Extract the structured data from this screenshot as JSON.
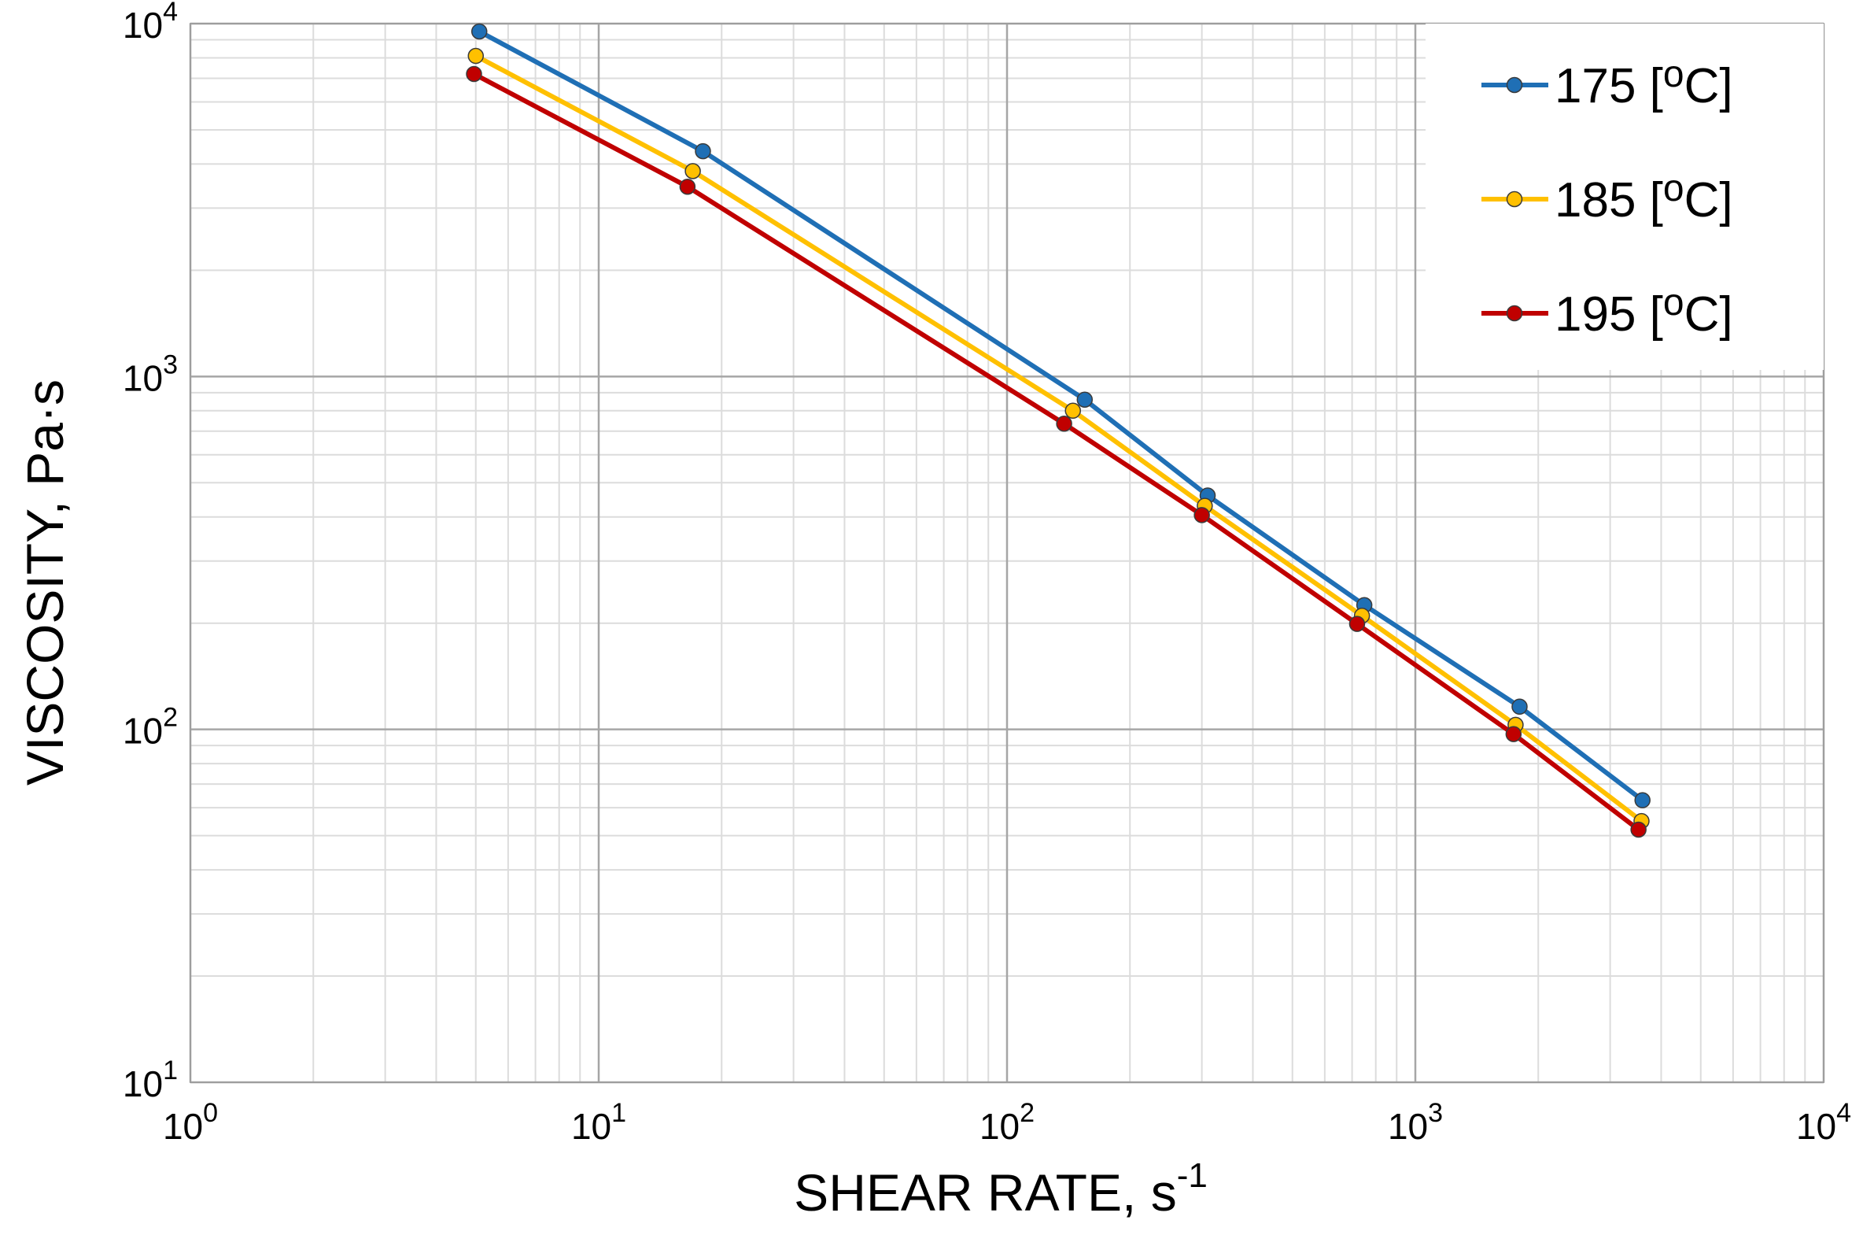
{
  "chart_data": {
    "type": "line",
    "x_scale": "log",
    "y_scale": "log",
    "xlim": [
      1,
      10000
    ],
    "ylim": [
      10,
      10000
    ],
    "xlabel": "SHEAR RATE, s",
    "xlabel_sup": "-1",
    "ylabel": "VISCOSITY, Pa·s",
    "grid": true,
    "legend_position": "top-right",
    "x_ticks": [
      {
        "value": 1,
        "base": "10",
        "exp": "0"
      },
      {
        "value": 10,
        "base": "10",
        "exp": "1"
      },
      {
        "value": 100,
        "base": "10",
        "exp": "2"
      },
      {
        "value": 1000,
        "base": "10",
        "exp": "3"
      },
      {
        "value": 10000,
        "base": "10",
        "exp": "4"
      }
    ],
    "y_ticks": [
      {
        "value": 10,
        "base": "10",
        "exp": "1"
      },
      {
        "value": 100,
        "base": "10",
        "exp": "2"
      },
      {
        "value": 1000,
        "base": "10",
        "exp": "3"
      },
      {
        "value": 10000,
        "base": "10",
        "exp": "4"
      }
    ],
    "series": [
      {
        "name": "175",
        "label_unit_open": "[",
        "label_unit_sup": "o",
        "label_unit_close": "C]",
        "color": "#1f6fb5",
        "x": [
          5.1,
          18,
          155,
          310,
          750,
          1800,
          3600
        ],
        "y": [
          9500,
          4350,
          860,
          460,
          225,
          116,
          63
        ]
      },
      {
        "name": "185",
        "label_unit_open": "[",
        "label_unit_sup": "o",
        "label_unit_close": "C]",
        "color": "#ffc000",
        "x": [
          5.0,
          17,
          145,
          305,
          740,
          1760,
          3580
        ],
        "y": [
          8100,
          3820,
          800,
          430,
          210,
          103,
          55
        ]
      },
      {
        "name": "195",
        "label_unit_open": "[",
        "label_unit_sup": "o",
        "label_unit_close": "C]",
        "color": "#c00000",
        "x": [
          4.95,
          16.5,
          138,
          300,
          720,
          1740,
          3520
        ],
        "y": [
          7200,
          3450,
          735,
          405,
          199,
          97,
          52
        ]
      }
    ]
  }
}
